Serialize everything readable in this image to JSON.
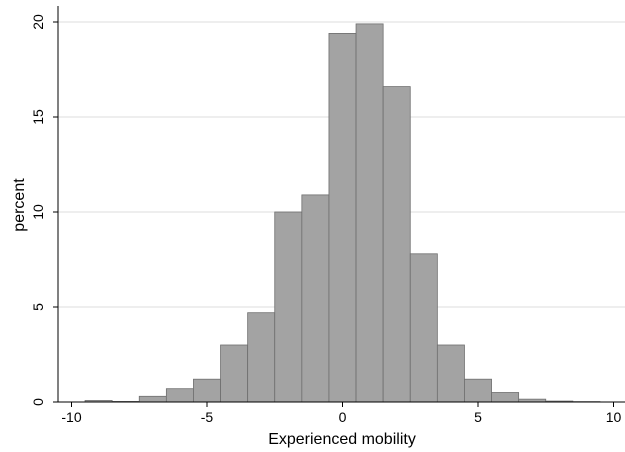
{
  "chart_data": {
    "type": "bar",
    "title": "",
    "xlabel": "Experienced mobility",
    "ylabel": "percent",
    "bin_width": 1,
    "bin_starts": [
      -9.5,
      -8.5,
      -7.5,
      -6.5,
      -5.5,
      -4.5,
      -3.5,
      -2.5,
      -1.5,
      -0.5,
      0.5,
      1.5,
      2.5,
      3.5,
      4.5,
      5.5,
      6.5,
      7.5,
      8.5
    ],
    "values": [
      0.08,
      0.03,
      0.3,
      0.7,
      1.2,
      3.0,
      4.7,
      10.0,
      10.9,
      19.4,
      19.9,
      16.6,
      7.8,
      3.0,
      1.2,
      0.5,
      0.15,
      0.05,
      0.02
    ],
    "xlim": [
      -10.5,
      10.5
    ],
    "ylim": [
      0,
      20
    ],
    "xticks": [
      -10,
      -5,
      0,
      5,
      10
    ],
    "yticks": [
      0,
      5,
      10,
      15,
      20
    ],
    "grid": true,
    "colors": {
      "bar_fill": "#a3a3a3",
      "bar_stroke": "#6e6e6e",
      "grid": "#dcdcdc",
      "axis": "#000000"
    }
  }
}
